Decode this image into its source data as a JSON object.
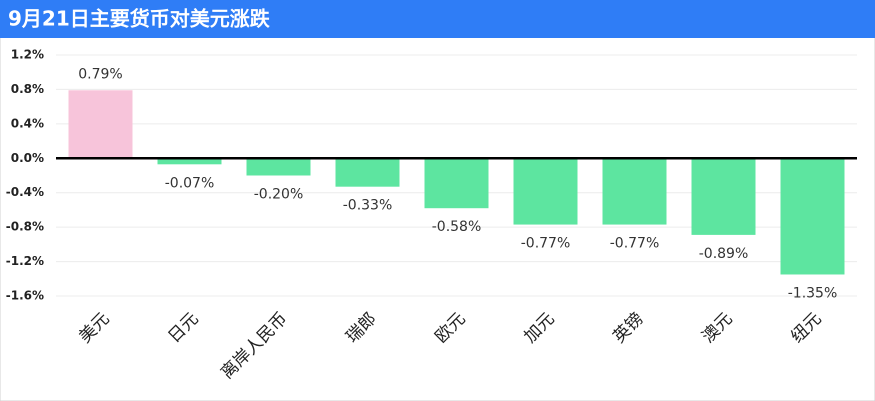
{
  "chart_data": {
    "type": "bar",
    "title": "9月21日主要货币对美元涨跌",
    "categories": [
      "美元",
      "日元",
      "离岸人民币",
      "瑞郎",
      "欧元",
      "加元",
      "英镑",
      "澳元",
      "纽元"
    ],
    "values": [
      0.79,
      -0.07,
      -0.2,
      -0.33,
      -0.58,
      -0.77,
      -0.77,
      -0.89,
      -1.35
    ],
    "value_labels": [
      "0.79%",
      "-0.07%",
      "-0.20%",
      "-0.33%",
      "-0.58%",
      "-0.77%",
      "-0.77%",
      "-0.89%",
      "-1.35%"
    ],
    "colors": [
      "#f7c4da",
      "#5de5a0",
      "#5de5a0",
      "#5de5a0",
      "#5de5a0",
      "#5de5a0",
      "#5de5a0",
      "#5de5a0",
      "#5de5a0"
    ],
    "ylim": [
      -1.6,
      1.2
    ],
    "yticks": [
      {
        "value": 1.2,
        "label": "1.2%"
      },
      {
        "value": 0.8,
        "label": "0.8%"
      },
      {
        "value": 0.4,
        "label": "0.4%"
      },
      {
        "value": 0,
        "label": "0.0%"
      },
      {
        "value": -0.4,
        "label": "-0.4%"
      },
      {
        "value": -0.8,
        "label": "-0.8%"
      },
      {
        "value": -1.2,
        "label": "-1.2%"
      },
      {
        "value": -1.6,
        "label": "-1.6%"
      }
    ],
    "grid": true
  }
}
